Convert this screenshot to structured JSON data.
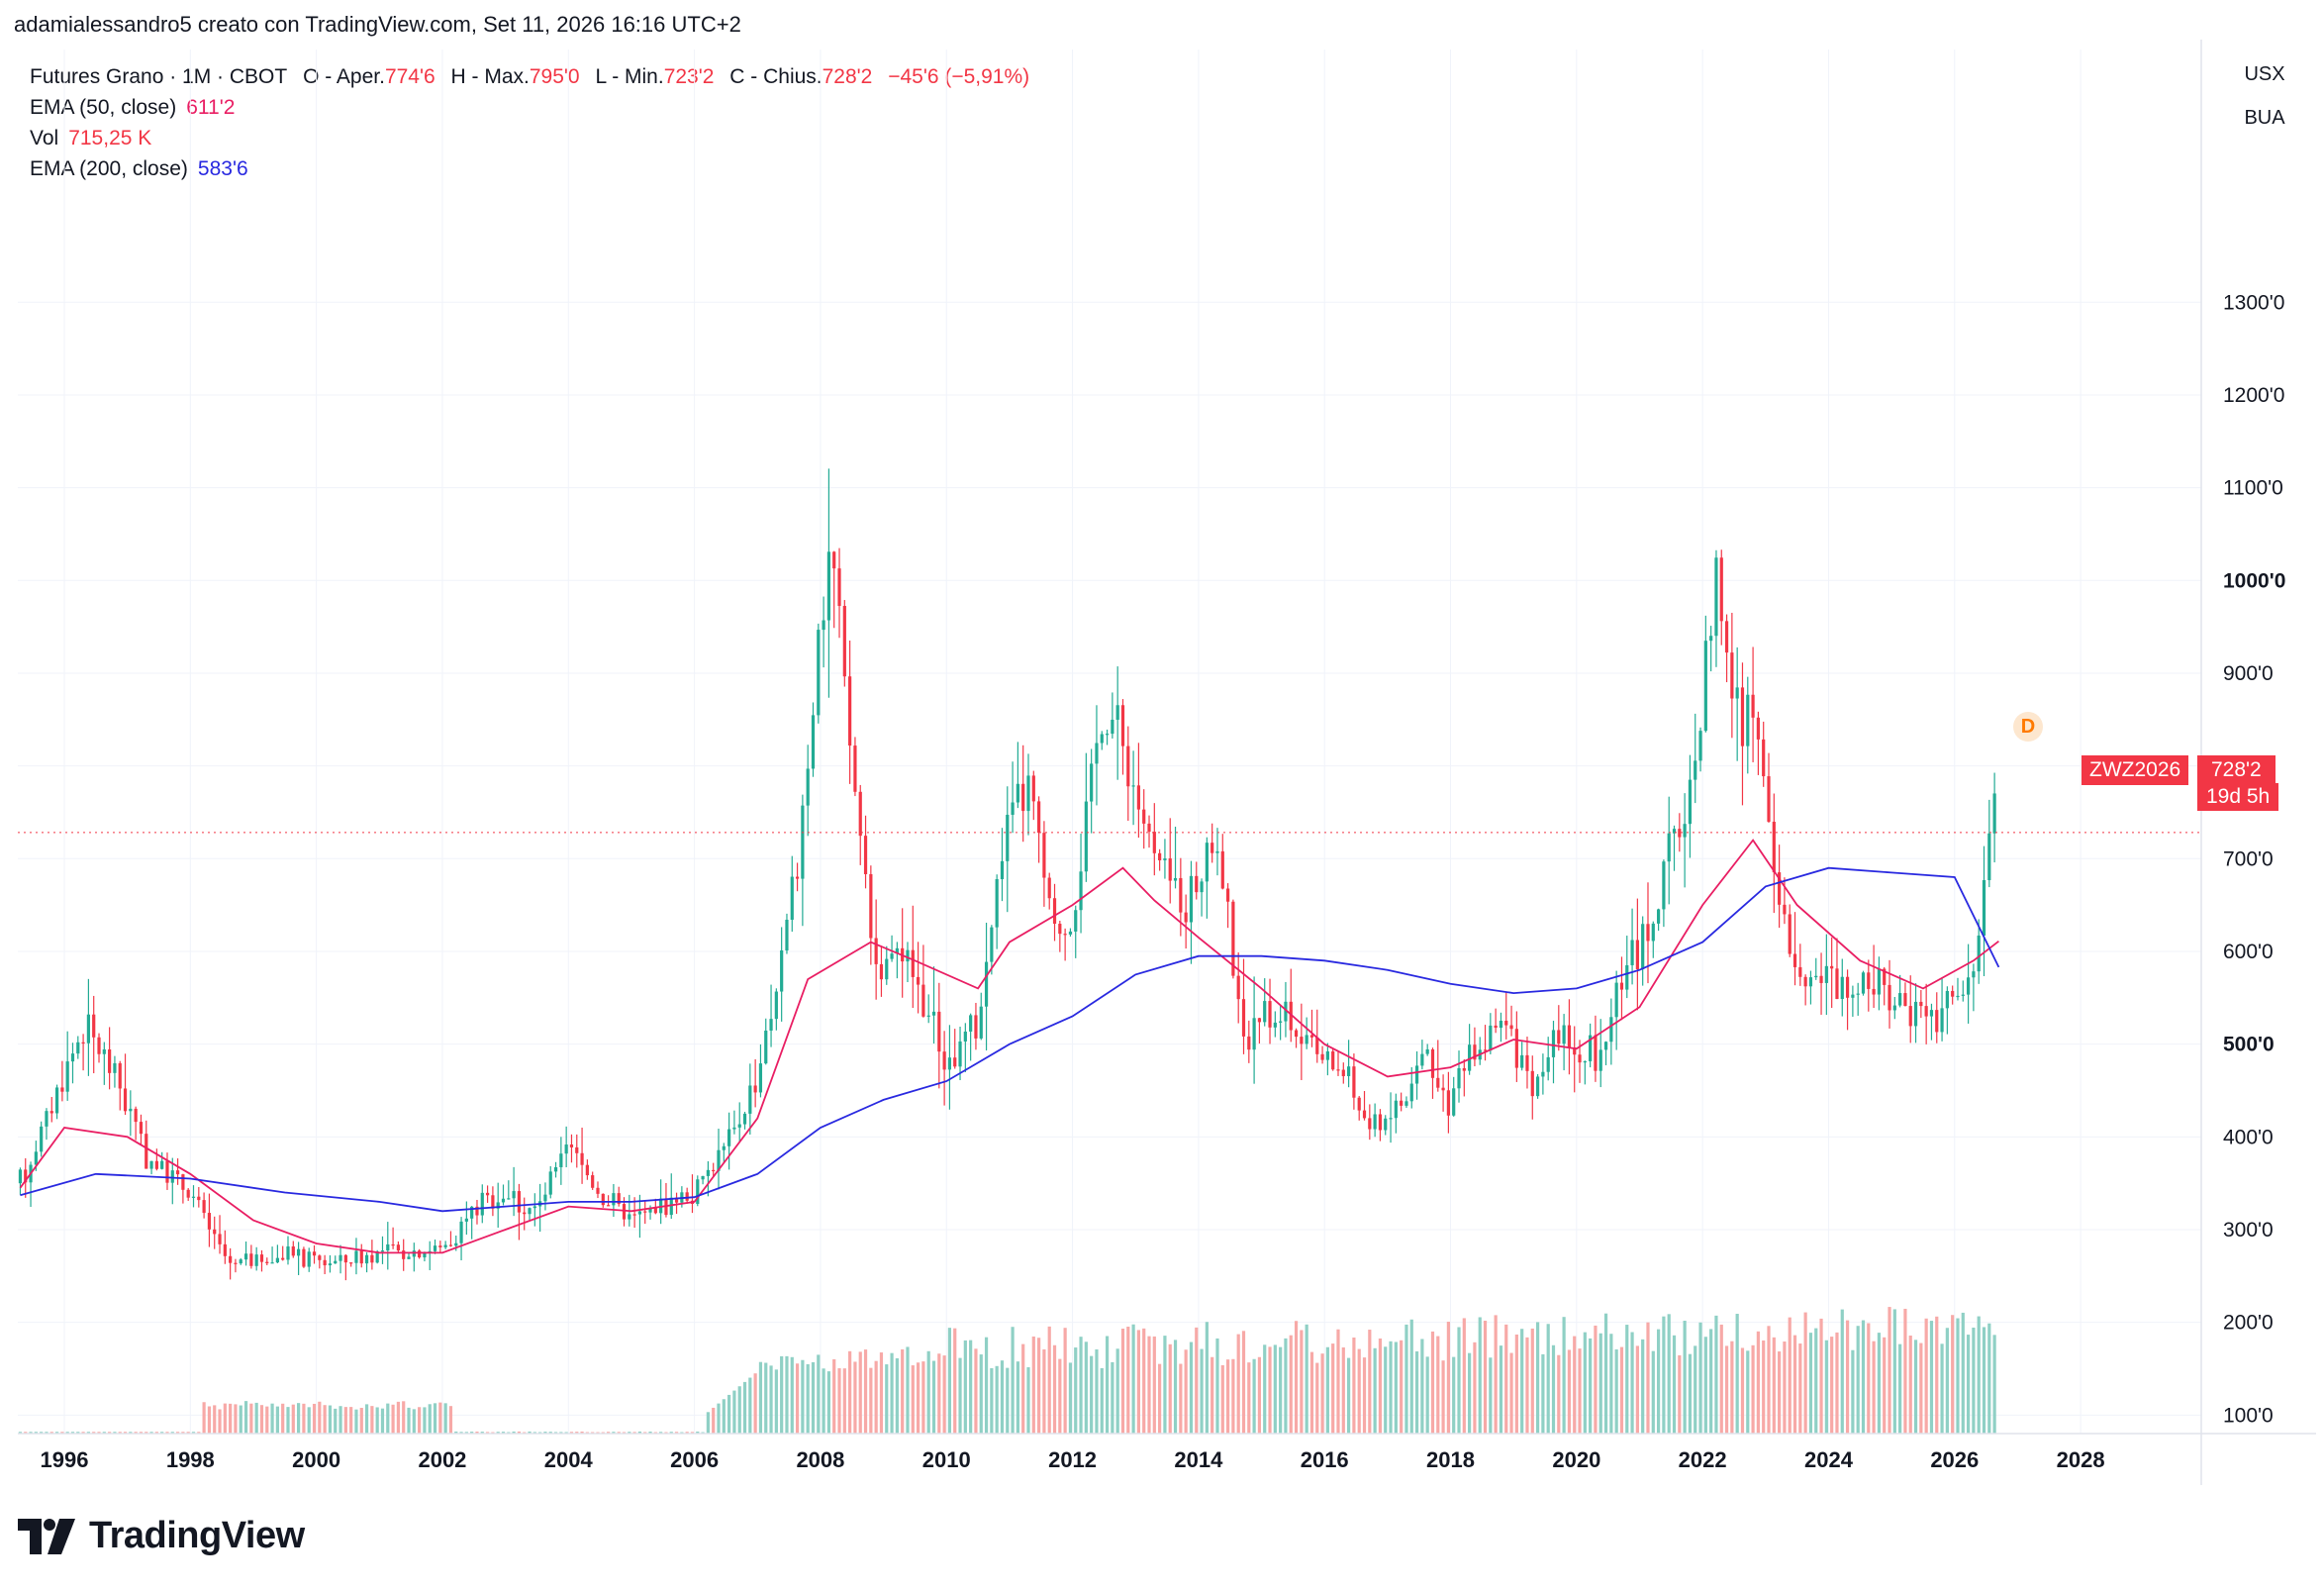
{
  "header": {
    "attribution": "adamialessandro5 creato con TradingView.com, Set 11, 2026 16:16 UTC+2"
  },
  "legend": {
    "symbol": "Futures Grano · 1M · CBOT",
    "open_label": "O - Aper.",
    "open_value": "774'6",
    "high_label": "H - Max.",
    "high_value": "795'0",
    "low_label": "L - Min.",
    "low_value": "723'2",
    "close_label": "C - Chius.",
    "close_value": "728'2",
    "change": "−45'6 (−5,91%)",
    "ema50_label": "EMA (50, close)",
    "ema50_value": "611'2",
    "vol_label": "Vol",
    "vol_value": "715,25 K",
    "ema200_label": "EMA (200, close)",
    "ema200_value": "583'6"
  },
  "units": {
    "currency": "USX",
    "unit": "BUA"
  },
  "price_tag": {
    "symbol": "ZWZ2026",
    "price": "728'2",
    "countdown": "19d 5h"
  },
  "marker": {
    "label": "D"
  },
  "logo": {
    "text": "TradingView"
  },
  "colors": {
    "up": "#22ab94",
    "down": "#f23645",
    "vol_up": "#8fd0c5",
    "vol_down": "#f7a9a7",
    "ema50": "#e91e63",
    "ema200": "#2929e0",
    "grid": "#f0f3fa"
  },
  "chart_data": {
    "type": "candlestick",
    "interval": "1M",
    "price_ticks": [
      "100'0",
      "200'0",
      "300'0",
      "400'0",
      "500'0",
      "600'0",
      "700'0",
      "800'0",
      "900'0",
      "1000'0",
      "1100'0",
      "1200'0",
      "1300'0"
    ],
    "bold_price_ticks": [
      "500'0",
      "1000'0"
    ],
    "year_ticks": [
      "1996",
      "1998",
      "2000",
      "2002",
      "2004",
      "2006",
      "2008",
      "2010",
      "2012",
      "2014",
      "2016",
      "2018",
      "2020",
      "2022",
      "2024",
      "2026",
      "2028"
    ],
    "ylim": [
      0,
      1380
    ],
    "xlim": [
      1995.25,
      2029.2
    ],
    "series": [
      {
        "name": "EMA (50, close)",
        "color": "#e91e63",
        "points": [
          [
            1995.3,
            345
          ],
          [
            1996,
            410
          ],
          [
            1997,
            400
          ],
          [
            1998,
            360
          ],
          [
            1999,
            310
          ],
          [
            2000,
            285
          ],
          [
            2001,
            275
          ],
          [
            2002,
            275
          ],
          [
            2003,
            300
          ],
          [
            2004,
            325
          ],
          [
            2005,
            320
          ],
          [
            2006,
            330
          ],
          [
            2007,
            420
          ],
          [
            2007.8,
            570
          ],
          [
            2008.8,
            610
          ],
          [
            2009.5,
            590
          ],
          [
            2010.5,
            560
          ],
          [
            2011,
            610
          ],
          [
            2012,
            650
          ],
          [
            2012.8,
            690
          ],
          [
            2013.3,
            655
          ],
          [
            2014,
            615
          ],
          [
            2015,
            560
          ],
          [
            2016,
            500
          ],
          [
            2017,
            465
          ],
          [
            2018,
            475
          ],
          [
            2019,
            505
          ],
          [
            2020,
            495
          ],
          [
            2021,
            540
          ],
          [
            2022,
            650
          ],
          [
            2022.8,
            720
          ],
          [
            2023.5,
            650
          ],
          [
            2024.5,
            590
          ],
          [
            2025.5,
            560
          ],
          [
            2026.3,
            590
          ],
          [
            2026.7,
            611
          ]
        ]
      },
      {
        "name": "EMA (200, close)",
        "color": "#2929e0",
        "points": [
          [
            1995.3,
            337
          ],
          [
            1996.5,
            360
          ],
          [
            1998,
            355
          ],
          [
            1999.5,
            340
          ],
          [
            2001,
            330
          ],
          [
            2002,
            320
          ],
          [
            2003,
            325
          ],
          [
            2004,
            330
          ],
          [
            2005,
            330
          ],
          [
            2006,
            335
          ],
          [
            2007,
            360
          ],
          [
            2008,
            410
          ],
          [
            2009,
            440
          ],
          [
            2010,
            460
          ],
          [
            2011,
            500
          ],
          [
            2012,
            530
          ],
          [
            2013,
            575
          ],
          [
            2014,
            595
          ],
          [
            2015,
            595
          ],
          [
            2016,
            590
          ],
          [
            2017,
            580
          ],
          [
            2018,
            565
          ],
          [
            2019,
            555
          ],
          [
            2020,
            560
          ],
          [
            2021,
            580
          ],
          [
            2022,
            610
          ],
          [
            2023,
            670
          ],
          [
            2024,
            690
          ],
          [
            2025,
            685
          ],
          [
            2026,
            680
          ],
          [
            2026.7,
            583
          ]
        ]
      }
    ],
    "last_price": 728.25,
    "volume_scale_max_k": 950
  }
}
